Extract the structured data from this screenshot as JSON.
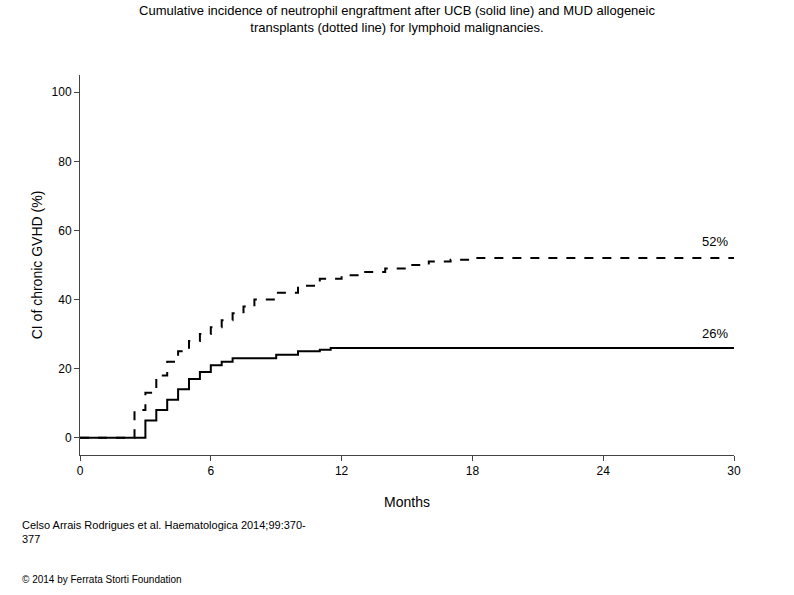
{
  "chart_data": {
    "type": "line",
    "title": "Cumulative incidence of neutrophil engraftment after UCB (solid line) and MUD allogeneic\ntransplants (dotted line) for lymphoid malignancies.",
    "x_label": "Months",
    "y_label": "CI of chronic GVHD (%)",
    "xlim": [
      0,
      30
    ],
    "ylim": [
      -5,
      105
    ],
    "xticks": [
      0,
      6,
      12,
      18,
      24,
      30
    ],
    "yticks": [
      0,
      20,
      40,
      60,
      80,
      100
    ],
    "grid": false,
    "series": [
      {
        "color": "#000000",
        "line_style": "solid",
        "x": [
          0,
          3.0,
          3.0,
          3.5,
          3.5,
          4.0,
          4.0,
          4.5,
          4.5,
          5.0,
          5.0,
          5.5,
          5.5,
          6.0,
          6.0,
          6.5,
          6.5,
          7.0,
          7.0,
          9.0,
          9.0,
          10.0,
          10.0,
          11.0,
          11.0,
          11.5,
          11.5,
          12.0,
          12.0,
          30.0
        ],
        "values": [
          0,
          0,
          5,
          5,
          8,
          8,
          11,
          11,
          14,
          14,
          17,
          17,
          19,
          19,
          21,
          21,
          22,
          22,
          23,
          23,
          24,
          24,
          25,
          25,
          25.5,
          25.5,
          26,
          26,
          26,
          26
        ]
      },
      {
        "color": "#000000",
        "line_style": "dashed",
        "x": [
          0,
          2.5,
          2.5,
          3.0,
          3.0,
          3.5,
          3.5,
          4.0,
          4.0,
          4.5,
          4.5,
          5.0,
          5.0,
          5.5,
          5.5,
          6.0,
          6.0,
          6.5,
          6.5,
          7.0,
          7.0,
          7.5,
          7.5,
          8.0,
          8.0,
          9.0,
          9.0,
          10.0,
          10.0,
          11.0,
          11.0,
          12.0,
          12.0,
          13.0,
          13.0,
          14.0,
          14.0,
          15.0,
          15.0,
          16.0,
          16.0,
          17.0,
          17.0,
          18.0,
          18.0,
          19.0,
          19.0,
          20.0,
          20.0,
          30.0
        ],
        "values": [
          0,
          0,
          8,
          8,
          13,
          13,
          18,
          18,
          22,
          22,
          25,
          25,
          28,
          28,
          30,
          30,
          32,
          32,
          34,
          34,
          36,
          36,
          38,
          38,
          40,
          40,
          42,
          42,
          44,
          44,
          46,
          46,
          47,
          47,
          48,
          48,
          49,
          49,
          50,
          50,
          51,
          51,
          51.5,
          51.5,
          52,
          52,
          52,
          52,
          52,
          52
        ]
      }
    ],
    "annotations": [
      {
        "text": "26%",
        "x": 29.8,
        "y": 27.5
      },
      {
        "text": "52%",
        "x": 29.8,
        "y": 54
      },
      {
        "text": "Celso Arrais Rodrigues et al. Haematologica 2014;99:370-\n377"
      },
      {
        "text": "© 2014 by Ferrata Storti Foundation"
      }
    ]
  }
}
